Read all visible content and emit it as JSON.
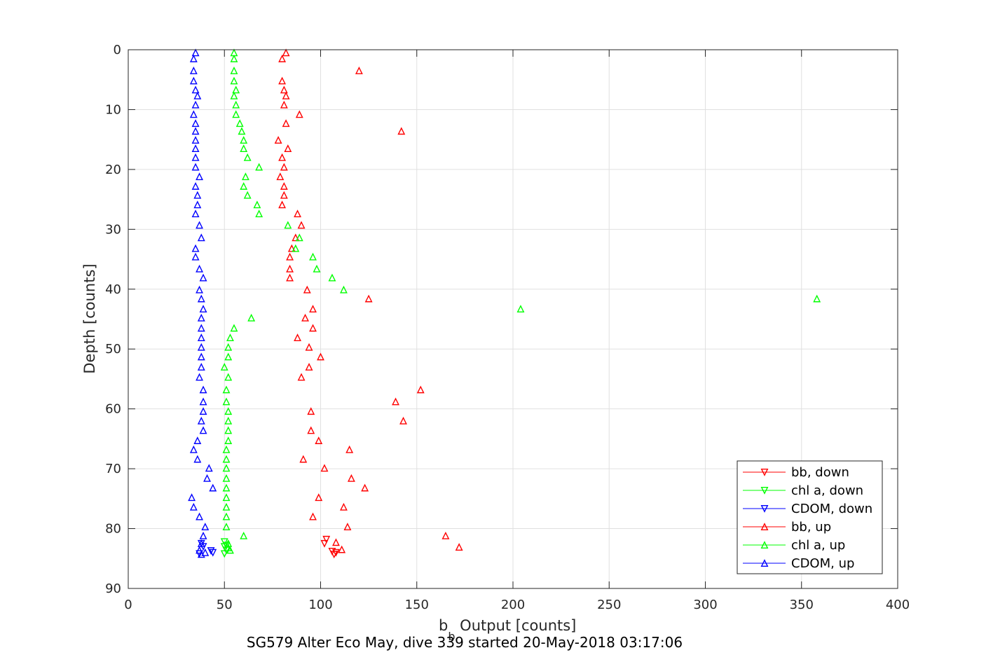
{
  "chart_data": {
    "type": "scatter",
    "xlabel": "b",
    "xlabel_sub": "b",
    "xlabel_rest": " Output [counts]",
    "ylabel": "Depth [counts]",
    "caption": "SG579 Alter Eco May, dive 339 started 20-May-2018 03:17:06",
    "xlim": [
      0,
      400
    ],
    "ylim": [
      0,
      90
    ],
    "y_reversed": true,
    "grid": true,
    "x_ticks": [
      0,
      50,
      100,
      150,
      200,
      250,
      300,
      350,
      400
    ],
    "y_ticks": [
      0,
      10,
      20,
      30,
      40,
      50,
      60,
      70,
      80,
      90
    ],
    "legend_position": "bottom-right",
    "series": [
      {
        "name": "bb, down",
        "color": "#ff0000",
        "marker": "triangle-down",
        "points": [
          [
            102,
            82.5
          ],
          [
            103,
            81.8
          ],
          [
            106,
            83.8
          ],
          [
            107,
            84.3
          ],
          [
            108,
            84.0
          ]
        ]
      },
      {
        "name": "chl a, down",
        "color": "#00ff00",
        "marker": "triangle-down",
        "points": [
          [
            50,
            82.2
          ],
          [
            50,
            83.0
          ],
          [
            51,
            83.6
          ],
          [
            50,
            84.2
          ],
          [
            51,
            82.8
          ]
        ]
      },
      {
        "name": "CDOM, down",
        "color": "#0000ff",
        "marker": "triangle-down",
        "points": [
          [
            38,
            82.5
          ],
          [
            39,
            83.0
          ],
          [
            43,
            83.7
          ],
          [
            44,
            84.0
          ],
          [
            37,
            84.2
          ]
        ]
      },
      {
        "name": "bb, up",
        "color": "#ff0000",
        "marker": "triangle-up",
        "points": [
          [
            82,
            0.5
          ],
          [
            80,
            1.5
          ],
          [
            120,
            3.5
          ],
          [
            80,
            5.2
          ],
          [
            81,
            6.7
          ],
          [
            82,
            7.7
          ],
          [
            81,
            9.2
          ],
          [
            89,
            10.8
          ],
          [
            142,
            13.6
          ],
          [
            82,
            12.3
          ],
          [
            78,
            15.1
          ],
          [
            83,
            16.5
          ],
          [
            80,
            18.0
          ],
          [
            81,
            19.6
          ],
          [
            79,
            21.2
          ],
          [
            81,
            22.8
          ],
          [
            81,
            24.3
          ],
          [
            80,
            25.9
          ],
          [
            88,
            27.4
          ],
          [
            90,
            29.3
          ],
          [
            87,
            31.4
          ],
          [
            85,
            33.2
          ],
          [
            84,
            34.6
          ],
          [
            84,
            36.6
          ],
          [
            84,
            38.1
          ],
          [
            93,
            40.1
          ],
          [
            125,
            41.6
          ],
          [
            96,
            43.3
          ],
          [
            92,
            44.8
          ],
          [
            96,
            46.5
          ],
          [
            88,
            48.1
          ],
          [
            94,
            49.7
          ],
          [
            100,
            51.3
          ],
          [
            94,
            53.0
          ],
          [
            90,
            54.7
          ],
          [
            152,
            56.8
          ],
          [
            139,
            58.8
          ],
          [
            143,
            62.0
          ],
          [
            95,
            60.4
          ],
          [
            95,
            63.6
          ],
          [
            99,
            65.3
          ],
          [
            115,
            66.8
          ],
          [
            91,
            68.4
          ],
          [
            102,
            69.9
          ],
          [
            116,
            71.6
          ],
          [
            123,
            73.2
          ],
          [
            99,
            74.8
          ],
          [
            112,
            76.4
          ],
          [
            96,
            78.0
          ],
          [
            114,
            79.7
          ],
          [
            165,
            81.2
          ],
          [
            108,
            82.3
          ],
          [
            172,
            83.1
          ],
          [
            111,
            83.5
          ]
        ]
      },
      {
        "name": "chl a, up",
        "color": "#00ff00",
        "marker": "triangle-up",
        "points": [
          [
            55,
            0.5
          ],
          [
            55,
            1.5
          ],
          [
            55,
            3.5
          ],
          [
            55,
            5.2
          ],
          [
            56,
            6.7
          ],
          [
            55,
            7.7
          ],
          [
            56,
            9.2
          ],
          [
            56,
            10.8
          ],
          [
            58,
            12.3
          ],
          [
            59,
            13.6
          ],
          [
            60,
            15.1
          ],
          [
            60,
            16.5
          ],
          [
            62,
            18.0
          ],
          [
            68,
            19.6
          ],
          [
            61,
            21.2
          ],
          [
            60,
            22.8
          ],
          [
            62,
            24.3
          ],
          [
            67,
            25.9
          ],
          [
            68,
            27.4
          ],
          [
            83,
            29.3
          ],
          [
            89,
            31.4
          ],
          [
            87,
            33.2
          ],
          [
            96,
            34.6
          ],
          [
            98,
            36.6
          ],
          [
            106,
            38.1
          ],
          [
            112,
            40.1
          ],
          [
            358,
            41.6
          ],
          [
            204,
            43.3
          ],
          [
            64,
            44.8
          ],
          [
            55,
            46.5
          ],
          [
            53,
            48.1
          ],
          [
            52,
            49.7
          ],
          [
            52,
            51.3
          ],
          [
            50,
            53.0
          ],
          [
            52,
            54.7
          ],
          [
            51,
            56.8
          ],
          [
            51,
            58.8
          ],
          [
            52,
            60.4
          ],
          [
            52,
            62.0
          ],
          [
            52,
            63.6
          ],
          [
            52,
            65.3
          ],
          [
            51,
            66.8
          ],
          [
            51,
            68.4
          ],
          [
            51,
            69.9
          ],
          [
            51,
            71.6
          ],
          [
            51,
            73.2
          ],
          [
            51,
            74.8
          ],
          [
            51,
            76.4
          ],
          [
            51,
            78.0
          ],
          [
            51,
            79.7
          ],
          [
            60,
            81.2
          ],
          [
            52,
            82.5
          ],
          [
            52,
            83.2
          ],
          [
            53,
            83.6
          ]
        ]
      },
      {
        "name": "CDOM, up",
        "color": "#0000ff",
        "marker": "triangle-up",
        "points": [
          [
            35,
            0.5
          ],
          [
            34,
            1.5
          ],
          [
            34,
            3.5
          ],
          [
            34,
            5.2
          ],
          [
            35,
            6.7
          ],
          [
            36,
            7.7
          ],
          [
            35,
            9.2
          ],
          [
            34,
            10.8
          ],
          [
            35,
            12.3
          ],
          [
            35,
            13.6
          ],
          [
            35,
            15.1
          ],
          [
            35,
            16.5
          ],
          [
            35,
            18.0
          ],
          [
            35,
            19.6
          ],
          [
            37,
            21.2
          ],
          [
            35,
            22.8
          ],
          [
            36,
            24.3
          ],
          [
            36,
            25.9
          ],
          [
            35,
            27.4
          ],
          [
            37,
            29.3
          ],
          [
            38,
            31.4
          ],
          [
            35,
            33.2
          ],
          [
            35,
            34.6
          ],
          [
            37,
            36.6
          ],
          [
            39,
            38.1
          ],
          [
            37,
            40.1
          ],
          [
            38,
            41.6
          ],
          [
            39,
            43.3
          ],
          [
            38,
            44.8
          ],
          [
            38,
            46.5
          ],
          [
            38,
            48.1
          ],
          [
            38,
            49.7
          ],
          [
            38,
            51.3
          ],
          [
            38,
            53.0
          ],
          [
            37,
            54.7
          ],
          [
            39,
            56.8
          ],
          [
            39,
            58.8
          ],
          [
            39,
            60.4
          ],
          [
            38,
            62.0
          ],
          [
            39,
            63.6
          ],
          [
            36,
            65.3
          ],
          [
            34,
            66.8
          ],
          [
            36,
            68.4
          ],
          [
            42,
            69.9
          ],
          [
            41,
            71.6
          ],
          [
            44,
            73.2
          ],
          [
            33,
            74.8
          ],
          [
            34,
            76.4
          ],
          [
            37,
            78.0
          ],
          [
            40,
            79.7
          ],
          [
            39,
            81.2
          ],
          [
            38,
            82.5
          ],
          [
            37,
            83.6
          ],
          [
            38,
            84.3
          ],
          [
            40,
            84.0
          ]
        ]
      }
    ]
  }
}
